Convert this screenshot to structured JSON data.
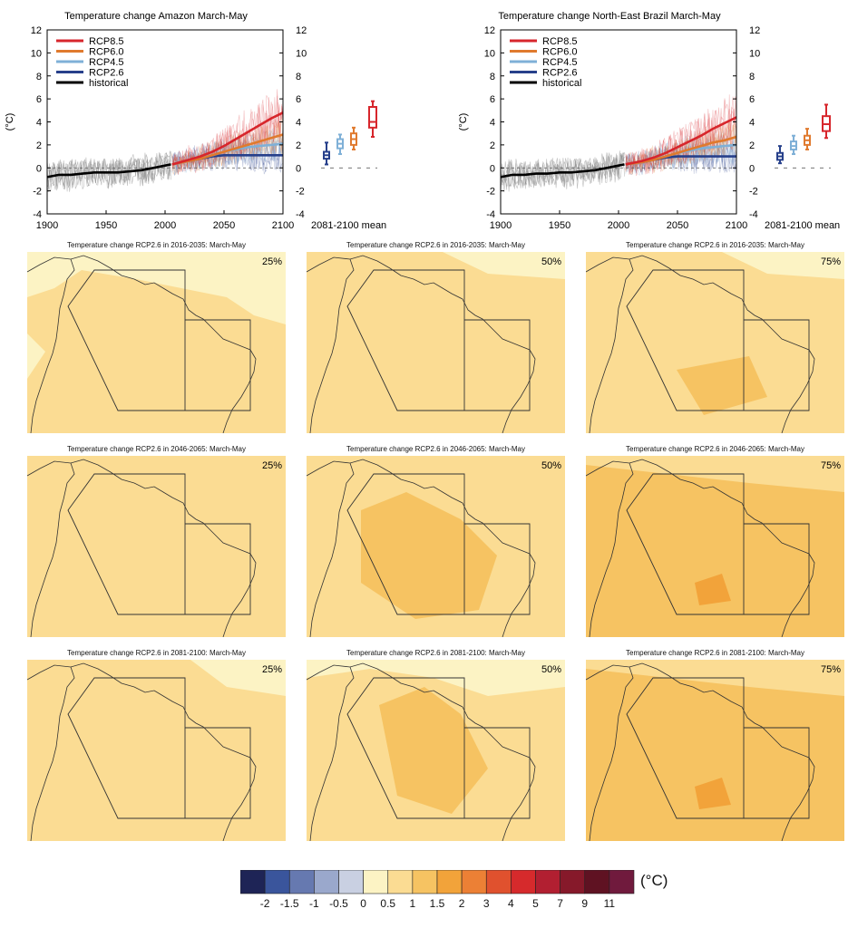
{
  "time_series_panels": [
    {
      "title": "Temperature change Amazon March-May",
      "ylabel": "(°C)",
      "boxplot_label": "2081-2100 mean"
    },
    {
      "title": "Temperature change North-East Brazil March-May",
      "ylabel": "(°C)",
      "boxplot_label": "2081-2100 mean"
    }
  ],
  "map_titles": [
    "Temperature change RCP2.6 in 2016-2035: March-May",
    "Temperature change RCP2.6 in 2046-2065: March-May",
    "Temperature change RCP2.6 in 2081-2100: March-May"
  ],
  "percentile_labels": [
    "25%",
    "50%",
    "75%"
  ],
  "colorbar": {
    "unit": "(°C)",
    "tick_labels": [
      "-2",
      "-1.5",
      "-1",
      "-0.5",
      "0",
      "0.5",
      "1",
      "1.5",
      "2",
      "3",
      "4",
      "5",
      "7",
      "9",
      "11"
    ],
    "colors": [
      "#1e2456",
      "#3a559c",
      "#6679b0",
      "#9aa8cc",
      "#c9d0e2",
      "#fcf3c4",
      "#fbdc93",
      "#f6c362",
      "#f2a33a",
      "#ec8035",
      "#e0512e",
      "#d62a2c",
      "#b21f31",
      "#86192a",
      "#5f1222",
      "#701a3d"
    ]
  },
  "chart_data": [
    {
      "type": "line",
      "title": "Temperature change Amazon March-May",
      "ylabel": "(°C)",
      "xlim": [
        1900,
        2100
      ],
      "ylim": [
        -4,
        12
      ],
      "xticks": [
        1900,
        1950,
        2000,
        2050,
        2100
      ],
      "yticks": [
        -4,
        -2,
        0,
        2,
        4,
        6,
        8,
        10,
        12
      ],
      "legend_position": "top-left",
      "series": [
        {
          "name": "RCP8.5",
          "color": "#d7262c",
          "x": [
            2006,
            2020,
            2030,
            2040,
            2050,
            2060,
            2070,
            2080,
            2090,
            2100
          ],
          "values": [
            0.3,
            0.7,
            1.0,
            1.4,
            1.9,
            2.5,
            3.1,
            3.7,
            4.3,
            4.8
          ]
        },
        {
          "name": "RCP6.0",
          "color": "#e07a2e",
          "x": [
            2006,
            2020,
            2030,
            2040,
            2050,
            2060,
            2070,
            2080,
            2090,
            2100
          ],
          "values": [
            0.3,
            0.6,
            0.8,
            1.1,
            1.4,
            1.7,
            2.0,
            2.3,
            2.6,
            2.9
          ]
        },
        {
          "name": "RCP4.5",
          "color": "#7fb0d7",
          "x": [
            2006,
            2020,
            2030,
            2040,
            2050,
            2060,
            2070,
            2080,
            2090,
            2100
          ],
          "values": [
            0.3,
            0.6,
            0.9,
            1.1,
            1.4,
            1.6,
            1.8,
            1.9,
            2.0,
            2.1
          ]
        },
        {
          "name": "RCP2.6",
          "color": "#27408b",
          "x": [
            2006,
            2020,
            2030,
            2040,
            2050,
            2060,
            2070,
            2080,
            2090,
            2100
          ],
          "values": [
            0.3,
            0.6,
            0.8,
            1.0,
            1.1,
            1.1,
            1.1,
            1.1,
            1.1,
            1.1
          ]
        },
        {
          "name": "historical",
          "color": "#000000",
          "x": [
            1900,
            1910,
            1920,
            1930,
            1940,
            1950,
            1960,
            1970,
            1980,
            1990,
            2000,
            2005
          ],
          "values": [
            -0.8,
            -0.6,
            -0.6,
            -0.5,
            -0.4,
            -0.4,
            -0.4,
            -0.3,
            -0.2,
            0.0,
            0.2,
            0.3
          ]
        }
      ],
      "boxplots": {
        "label": "2081-2100 mean",
        "items": [
          {
            "scenario": "RCP2.6",
            "color": "#27408b",
            "min": 0.3,
            "q1": 0.8,
            "median": 1.1,
            "q3": 1.4,
            "max": 2.2
          },
          {
            "scenario": "RCP4.5",
            "color": "#7fb0d7",
            "min": 1.2,
            "q1": 1.7,
            "median": 2.1,
            "q3": 2.5,
            "max": 2.9
          },
          {
            "scenario": "RCP6.0",
            "color": "#e07a2e",
            "min": 1.6,
            "q1": 2.0,
            "median": 2.5,
            "q3": 3.0,
            "max": 3.5
          },
          {
            "scenario": "RCP8.5",
            "color": "#d7262c",
            "min": 2.7,
            "q1": 3.5,
            "median": 4.0,
            "q3": 5.3,
            "max": 5.8
          }
        ]
      }
    },
    {
      "type": "line",
      "title": "Temperature change North-East Brazil March-May",
      "ylabel": "(°C)",
      "xlim": [
        1900,
        2100
      ],
      "ylim": [
        -4,
        12
      ],
      "xticks": [
        1900,
        1950,
        2000,
        2050,
        2100
      ],
      "yticks": [
        -4,
        -2,
        0,
        2,
        4,
        6,
        8,
        10,
        12
      ],
      "legend_position": "top-left",
      "series": [
        {
          "name": "RCP8.5",
          "color": "#d7262c",
          "x": [
            2006,
            2020,
            2030,
            2040,
            2050,
            2060,
            2070,
            2080,
            2090,
            2100
          ],
          "values": [
            0.3,
            0.6,
            0.9,
            1.3,
            1.8,
            2.3,
            2.8,
            3.4,
            3.9,
            4.4
          ]
        },
        {
          "name": "RCP6.0",
          "color": "#e07a2e",
          "x": [
            2006,
            2020,
            2030,
            2040,
            2050,
            2060,
            2070,
            2080,
            2090,
            2100
          ],
          "values": [
            0.3,
            0.5,
            0.7,
            1.0,
            1.3,
            1.6,
            1.9,
            2.2,
            2.4,
            2.7
          ]
        },
        {
          "name": "RCP4.5",
          "color": "#7fb0d7",
          "x": [
            2006,
            2020,
            2030,
            2040,
            2050,
            2060,
            2070,
            2080,
            2090,
            2100
          ],
          "values": [
            0.3,
            0.5,
            0.8,
            1.0,
            1.3,
            1.5,
            1.7,
            1.8,
            1.9,
            2.0
          ]
        },
        {
          "name": "RCP2.6",
          "color": "#27408b",
          "x": [
            2006,
            2020,
            2030,
            2040,
            2050,
            2060,
            2070,
            2080,
            2090,
            2100
          ],
          "values": [
            0.3,
            0.5,
            0.7,
            0.9,
            1.0,
            1.0,
            1.0,
            1.0,
            1.0,
            1.0
          ]
        },
        {
          "name": "historical",
          "color": "#000000",
          "x": [
            1900,
            1910,
            1920,
            1930,
            1940,
            1950,
            1960,
            1970,
            1980,
            1990,
            2000,
            2005
          ],
          "values": [
            -0.8,
            -0.6,
            -0.6,
            -0.5,
            -0.5,
            -0.4,
            -0.4,
            -0.3,
            -0.2,
            0.0,
            0.2,
            0.3
          ]
        }
      ],
      "boxplots": {
        "label": "2081-2100 mean",
        "items": [
          {
            "scenario": "RCP2.6",
            "color": "#27408b",
            "min": 0.4,
            "q1": 0.7,
            "median": 1.0,
            "q3": 1.3,
            "max": 1.9
          },
          {
            "scenario": "RCP4.5",
            "color": "#7fb0d7",
            "min": 1.2,
            "q1": 1.6,
            "median": 1.9,
            "q3": 2.3,
            "max": 2.8
          },
          {
            "scenario": "RCP6.0",
            "color": "#e07a2e",
            "min": 1.6,
            "q1": 2.0,
            "median": 2.4,
            "q3": 2.8,
            "max": 3.4
          },
          {
            "scenario": "RCP8.5",
            "color": "#d7262c",
            "min": 2.6,
            "q1": 3.2,
            "median": 3.8,
            "q3": 4.5,
            "max": 5.5
          }
        ]
      }
    },
    {
      "type": "heatmap",
      "description_panels": [
        {
          "period": "2016-2035",
          "percentile": "25%",
          "dominant_class": "0.5-1"
        },
        {
          "period": "2016-2035",
          "percentile": "50%",
          "dominant_class": "0.5-1"
        },
        {
          "period": "2016-2035",
          "percentile": "75%",
          "dominant_class": "0.5-1"
        },
        {
          "period": "2046-2065",
          "percentile": "25%",
          "dominant_class": "0.5-1"
        },
        {
          "period": "2046-2065",
          "percentile": "50%",
          "dominant_class": "0.5-1"
        },
        {
          "period": "2046-2065",
          "percentile": "75%",
          "dominant_class": "1-1.5"
        },
        {
          "period": "2081-2100",
          "percentile": "25%",
          "dominant_class": "0.5-1"
        },
        {
          "period": "2081-2100",
          "percentile": "50%",
          "dominant_class": "0.5-1"
        },
        {
          "period": "2081-2100",
          "percentile": "75%",
          "dominant_class": "1-1.5"
        }
      ]
    }
  ]
}
